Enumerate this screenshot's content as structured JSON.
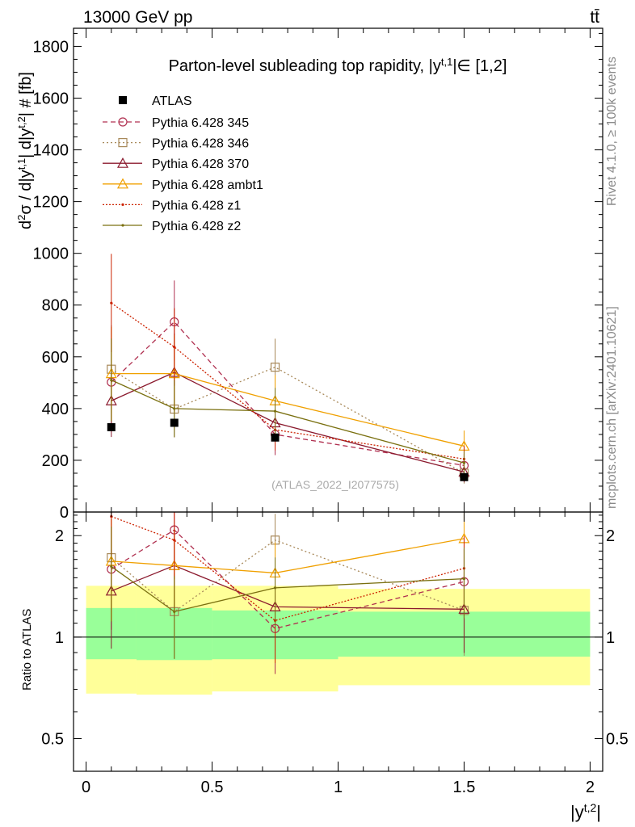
{
  "chart_data": {
    "type": "scatter",
    "header_left": "13000 GeV pp",
    "header_right": "tt̄",
    "title": "Parton-level subleading top rapidity, |y^{t,1}| ∈ [1,2]",
    "watermark": "(ATLAS_2022_I2077575)",
    "side_top": "Rivet 4.1.0, ≥ 100k events",
    "side_bottom": "mcplots.cern.ch [arXiv:2401.10621]",
    "ylabel_main": "d²σ / d|y^{t,1}| d|y^{t,2}| # [fb]",
    "ylabel_ratio": "Ratio to ATLAS",
    "xlabel": "|y^{t,2}|",
    "xlim": [
      -0.05,
      2.05
    ],
    "ylim_main": [
      0,
      1870
    ],
    "ylim_ratio": [
      0.4,
      2.35
    ],
    "x_ticks": [
      {
        "v": 0,
        "label": "0"
      },
      {
        "v": 0.5,
        "label": "0.5"
      },
      {
        "v": 1,
        "label": "1"
      },
      {
        "v": 1.5,
        "label": "1.5"
      },
      {
        "v": 2,
        "label": "2"
      }
    ],
    "main_ticks": [
      {
        "v": 0,
        "label": "0"
      },
      {
        "v": 200,
        "label": "200"
      },
      {
        "v": 400,
        "label": "400"
      },
      {
        "v": 600,
        "label": "600"
      },
      {
        "v": 800,
        "label": "800"
      },
      {
        "v": 1000,
        "label": "1000"
      },
      {
        "v": 1200,
        "label": "1200"
      },
      {
        "v": 1400,
        "label": "1400"
      },
      {
        "v": 1600,
        "label": "1600"
      },
      {
        "v": 1800,
        "label": "1800"
      }
    ],
    "ratio_ticks": [
      {
        "v": 0.5,
        "label": "0.5"
      },
      {
        "v": 1,
        "label": "1"
      },
      {
        "v": 2,
        "label": "2"
      }
    ],
    "bins": [
      [
        0,
        0.2
      ],
      [
        0.2,
        0.5
      ],
      [
        0.5,
        1.0
      ],
      [
        1.0,
        2.0
      ]
    ],
    "x": [
      0.1,
      0.35,
      0.75,
      1.5
    ],
    "data": {
      "name": "ATLAS",
      "values": [
        328,
        345,
        288,
        135
      ],
      "band_inner": [
        [
          0.86,
          1.22
        ],
        [
          0.855,
          1.22
        ],
        [
          0.86,
          1.2
        ],
        [
          0.875,
          1.19
        ]
      ],
      "band_outer": [
        [
          0.68,
          1.42
        ],
        [
          0.675,
          1.42
        ],
        [
          0.69,
          1.42
        ],
        [
          0.72,
          1.39
        ]
      ]
    },
    "series": [
      {
        "name": "Pythia 6.428 345",
        "color": "#b03050",
        "dash": "6,4",
        "marker": "circle",
        "values": [
          502,
          735,
          300,
          180
        ],
        "err_low": [
          170,
          150,
          80,
          40
        ],
        "err_high": [
          170,
          160,
          80,
          45
        ],
        "ratio": [
          1.59,
          2.08,
          1.06,
          1.46
        ]
      },
      {
        "name": "Pythia 6.428 346",
        "color": "#a8895a",
        "dash": "2,3",
        "marker": "square",
        "values": [
          552,
          398,
          560,
          150
        ],
        "err_low": [
          170,
          110,
          100,
          40
        ],
        "err_high": [
          170,
          120,
          110,
          45
        ],
        "ratio": [
          1.72,
          1.19,
          1.94,
          1.2
        ]
      },
      {
        "name": "Pythia 6.428 370",
        "color": "#8b1a2e",
        "dash": "",
        "marker": "triangle",
        "values": [
          430,
          540,
          345,
          155
        ],
        "err_low": [
          140,
          150,
          90,
          40
        ],
        "err_high": [
          140,
          150,
          90,
          40
        ],
        "ratio": [
          1.37,
          1.63,
          1.23,
          1.21
        ]
      },
      {
        "name": "Pythia 6.428 ambt1",
        "color": "#f0a000",
        "dash": "",
        "marker": "triangle",
        "values": [
          535,
          535,
          430,
          255
        ],
        "err_low": [
          180,
          150,
          100,
          60
        ],
        "err_high": [
          180,
          150,
          100,
          60
        ],
        "ratio": [
          1.68,
          1.63,
          1.55,
          1.96
        ]
      },
      {
        "name": "Pythia 6.428 z1",
        "color": "#cc2200",
        "dash": "2,2",
        "marker": "dot",
        "values": [
          808,
          638,
          318,
          205
        ],
        "err_low": [
          190,
          150,
          80,
          50
        ],
        "err_high": [
          190,
          150,
          80,
          50
        ],
        "ratio": [
          2.28,
          1.94,
          1.12,
          1.6
        ]
      },
      {
        "name": "Pythia 6.428 z2",
        "color": "#7a7010",
        "dash": "",
        "marker": "dot",
        "values": [
          510,
          400,
          390,
          190
        ],
        "err_low": [
          160,
          110,
          90,
          45
        ],
        "err_high": [
          160,
          110,
          90,
          45
        ],
        "ratio": [
          1.62,
          1.19,
          1.4,
          1.49
        ]
      }
    ]
  }
}
